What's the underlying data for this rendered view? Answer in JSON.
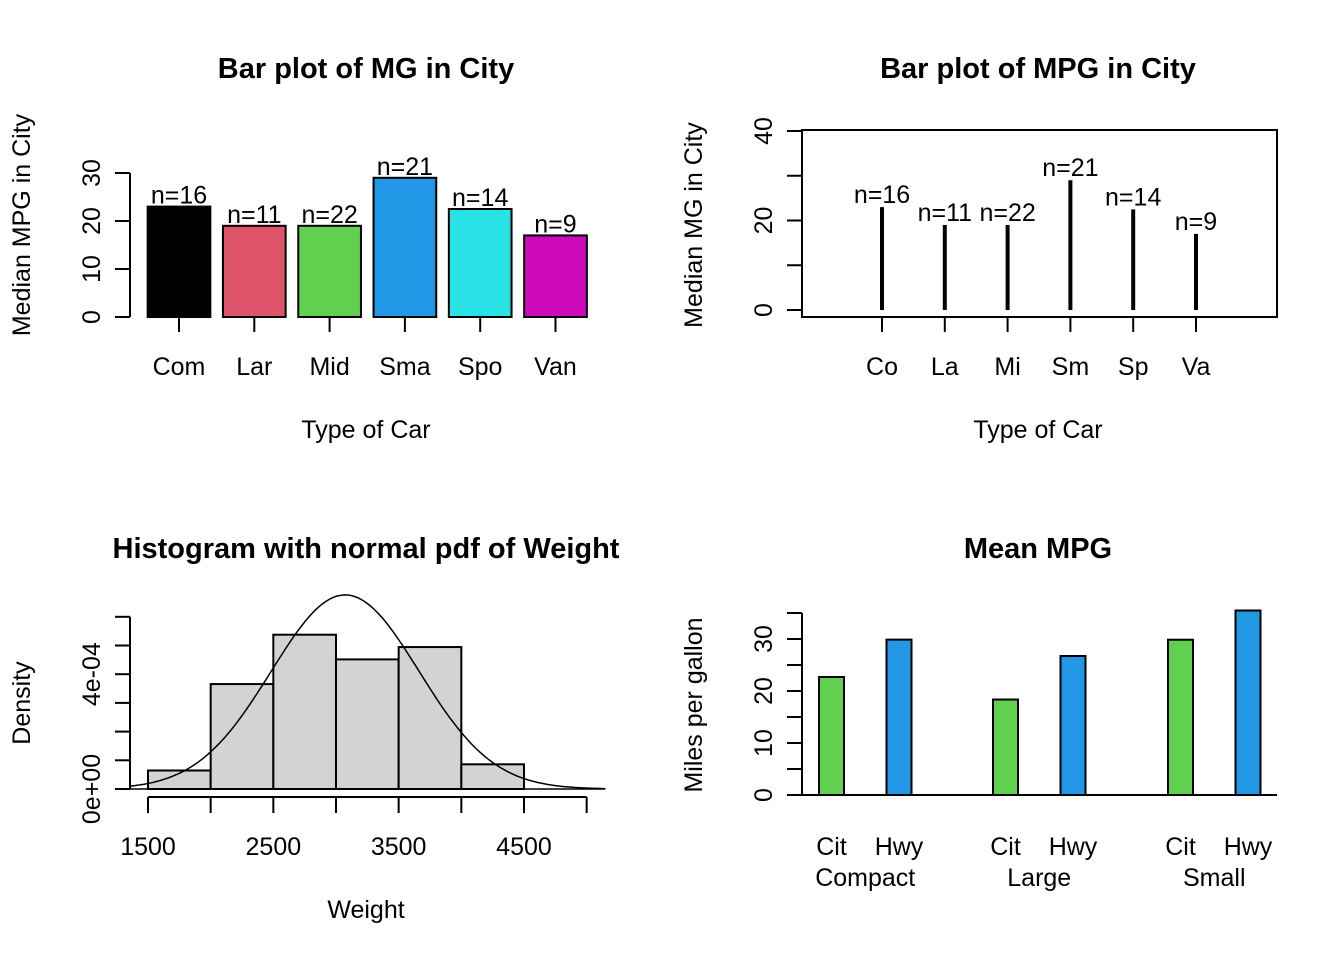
{
  "chart_data": [
    {
      "type": "bar",
      "title": "Bar plot of MG in City",
      "xlabel": "Type of Car",
      "ylabel": "Median MPG in City",
      "categories": [
        "Com",
        "Lar",
        "Mid",
        "Sma",
        "Spo",
        "Van"
      ],
      "values": [
        23,
        19,
        19,
        29,
        22.5,
        17
      ],
      "bar_labels": [
        "n=16",
        "n=11",
        "n=22",
        "n=21",
        "n=14",
        "n=9"
      ],
      "colors": [
        "#000000",
        "#DF536B",
        "#61D04F",
        "#2297E6",
        "#28E2E5",
        "#CD0BBC"
      ],
      "yticks": [
        "0",
        "10",
        "20",
        "30"
      ],
      "ylim": [
        0,
        30
      ],
      "grid": false
    },
    {
      "type": "bar",
      "style": "vertical lines (type h)",
      "title": "Bar plot of MPG in City",
      "xlabel": "Type of Car",
      "ylabel": "Median MG in City",
      "categories": [
        "Co",
        "La",
        "Mi",
        "Sm",
        "Sp",
        "Va"
      ],
      "values": [
        23,
        19,
        19,
        29,
        22.5,
        17
      ],
      "bar_labels": [
        "n=16",
        "n=11",
        "n=22",
        "n=21",
        "n=14",
        "n=9"
      ],
      "yticks": [
        "0",
        "20",
        "40"
      ],
      "ylim": [
        0,
        40
      ],
      "box": true,
      "grid": false
    },
    {
      "type": "bar",
      "subtype": "histogram",
      "title": "Histogram with normal pdf of Weight",
      "xlabel": "Weight",
      "ylabel": "Density",
      "bins": [
        [
          1500,
          2000
        ],
        [
          2000,
          2500
        ],
        [
          2500,
          3000
        ],
        [
          3000,
          3500
        ],
        [
          3500,
          4000
        ],
        [
          4000,
          4500
        ]
      ],
      "density": [
        6.45e-05,
        0.0003656,
        0.0005376,
        0.0004516,
        0.0004946,
        8.6e-05
      ],
      "fill": "#D3D3D3",
      "normal_curve": {
        "mean": 3073,
        "sd": 590
      },
      "xticks": [
        "1500",
        "2500",
        "3500",
        "4500"
      ],
      "yticks": [
        "0e+00",
        "4e-04"
      ],
      "xlim": [
        1350,
        5150
      ],
      "ylim": [
        0,
        0.0006
      ],
      "grid": false
    },
    {
      "type": "bar",
      "subtype": "grouped",
      "title": "Mean MPG",
      "ylabel": "Miles per gallon",
      "categories": [
        "Compact",
        "Large",
        "Small"
      ],
      "series": [
        {
          "name": "Cit",
          "values": [
            22.69,
            18.36,
            29.86
          ],
          "color": "#61D04F"
        },
        {
          "name": "Hwy",
          "values": [
            29.88,
            26.73,
            35.48
          ],
          "color": "#2297E6"
        }
      ],
      "yticks": [
        "0",
        "10",
        "20",
        "30"
      ],
      "ylim": [
        0,
        35
      ],
      "grid": false
    }
  ]
}
